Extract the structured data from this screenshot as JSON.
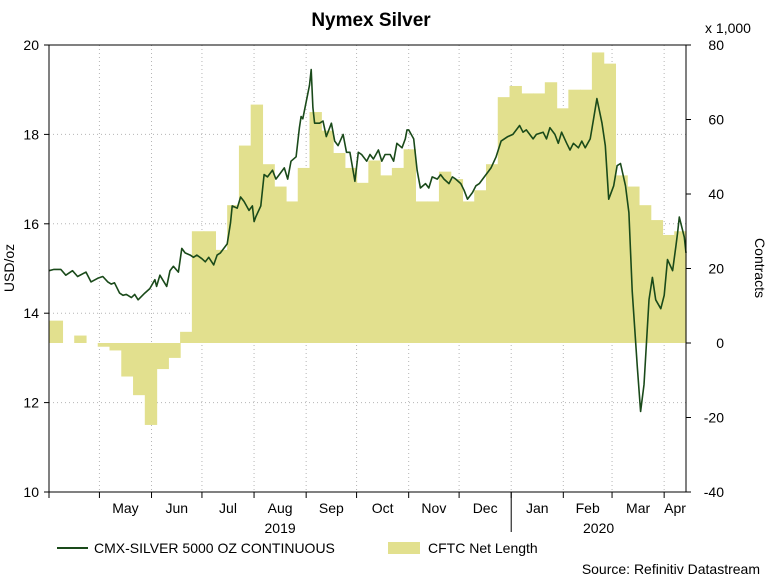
{
  "chart_data": {
    "type": "line",
    "title": "Nymex Silver",
    "left_axis_label": "USD/oz",
    "right_axis_label": "Contracts",
    "right_axis_multiplier": "x 1,000",
    "left_ylim": [
      10,
      20
    ],
    "left_ticks": [
      10,
      12,
      14,
      16,
      18,
      20
    ],
    "right_ylim": [
      -40,
      80
    ],
    "right_ticks": [
      -40,
      -20,
      0,
      20,
      40,
      60,
      80
    ],
    "month_labels": [
      "May",
      "Jun",
      "Jul",
      "Aug",
      "Sep",
      "Oct",
      "Nov",
      "Dec",
      "Jan",
      "Feb",
      "Mar",
      "Apr"
    ],
    "year_labels": [
      "2019",
      "2020"
    ],
    "grid": true,
    "legend_position": "bottom-left",
    "source": "Source: Refinitiv Datastream",
    "x_range": [
      "2019-04-01",
      "2020-04-14"
    ],
    "series": [
      {
        "name": "CMX-SILVER 5000 OZ CONTINUOUS",
        "type": "line",
        "axis": "left",
        "color": "#1a4a1a",
        "points": [
          [
            "2019-04-01",
            14.95
          ],
          [
            "2019-04-04",
            14.98
          ],
          [
            "2019-04-08",
            14.98
          ],
          [
            "2019-04-11",
            14.85
          ],
          [
            "2019-04-15",
            14.95
          ],
          [
            "2019-04-18",
            14.82
          ],
          [
            "2019-04-23",
            14.92
          ],
          [
            "2019-04-26",
            14.7
          ],
          [
            "2019-04-30",
            14.78
          ],
          [
            "2019-05-03",
            14.82
          ],
          [
            "2019-05-06",
            14.7
          ],
          [
            "2019-05-08",
            14.65
          ],
          [
            "2019-05-10",
            14.68
          ],
          [
            "2019-05-13",
            14.45
          ],
          [
            "2019-05-15",
            14.4
          ],
          [
            "2019-05-17",
            14.42
          ],
          [
            "2019-05-20",
            14.35
          ],
          [
            "2019-05-22",
            14.42
          ],
          [
            "2019-05-24",
            14.3
          ],
          [
            "2019-05-28",
            14.45
          ],
          [
            "2019-05-31",
            14.55
          ],
          [
            "2019-06-03",
            14.75
          ],
          [
            "2019-06-04",
            14.6
          ],
          [
            "2019-06-06",
            14.85
          ],
          [
            "2019-06-10",
            14.6
          ],
          [
            "2019-06-12",
            14.95
          ],
          [
            "2019-06-14",
            15.05
          ],
          [
            "2019-06-17",
            14.92
          ],
          [
            "2019-06-19",
            15.45
          ],
          [
            "2019-06-21",
            15.35
          ],
          [
            "2019-06-24",
            15.3
          ],
          [
            "2019-06-26",
            15.25
          ],
          [
            "2019-06-28",
            15.3
          ],
          [
            "2019-07-01",
            15.22
          ],
          [
            "2019-07-03",
            15.15
          ],
          [
            "2019-07-05",
            15.25
          ],
          [
            "2019-07-08",
            15.08
          ],
          [
            "2019-07-10",
            15.3
          ],
          [
            "2019-07-12",
            15.35
          ],
          [
            "2019-07-16",
            15.55
          ],
          [
            "2019-07-18",
            16.02
          ],
          [
            "2019-07-19",
            16.4
          ],
          [
            "2019-07-22",
            16.35
          ],
          [
            "2019-07-24",
            16.6
          ],
          [
            "2019-07-26",
            16.5
          ],
          [
            "2019-07-29",
            16.3
          ],
          [
            "2019-07-31",
            16.4
          ],
          [
            "2019-08-01",
            16.05
          ],
          [
            "2019-08-02",
            16.15
          ],
          [
            "2019-08-05",
            16.4
          ],
          [
            "2019-08-07",
            17.1
          ],
          [
            "2019-08-09",
            17.05
          ],
          [
            "2019-08-12",
            17.2
          ],
          [
            "2019-08-14",
            17.0
          ],
          [
            "2019-08-16",
            17.1
          ],
          [
            "2019-08-19",
            17.25
          ],
          [
            "2019-08-21",
            17.0
          ],
          [
            "2019-08-23",
            17.4
          ],
          [
            "2019-08-26",
            17.5
          ],
          [
            "2019-08-28",
            18.15
          ],
          [
            "2019-08-29",
            18.4
          ],
          [
            "2019-08-30",
            18.35
          ],
          [
            "2019-09-03",
            19.1
          ],
          [
            "2019-09-04",
            19.45
          ],
          [
            "2019-09-05",
            18.6
          ],
          [
            "2019-09-06",
            18.25
          ],
          [
            "2019-09-09",
            18.25
          ],
          [
            "2019-09-11",
            18.3
          ],
          [
            "2019-09-13",
            17.95
          ],
          [
            "2019-09-16",
            18.25
          ],
          [
            "2019-09-18",
            17.85
          ],
          [
            "2019-09-20",
            17.75
          ],
          [
            "2019-09-23",
            18.0
          ],
          [
            "2019-09-25",
            17.6
          ],
          [
            "2019-09-27",
            17.6
          ],
          [
            "2019-09-30",
            16.95
          ],
          [
            "2019-10-02",
            17.6
          ],
          [
            "2019-10-04",
            17.55
          ],
          [
            "2019-10-07",
            17.4
          ],
          [
            "2019-10-09",
            17.55
          ],
          [
            "2019-10-11",
            17.45
          ],
          [
            "2019-10-14",
            17.65
          ],
          [
            "2019-10-16",
            17.4
          ],
          [
            "2019-10-18",
            17.55
          ],
          [
            "2019-10-21",
            17.55
          ],
          [
            "2019-10-23",
            17.4
          ],
          [
            "2019-10-25",
            17.8
          ],
          [
            "2019-10-28",
            17.7
          ],
          [
            "2019-10-30",
            17.9
          ],
          [
            "2019-10-31",
            18.1
          ],
          [
            "2019-11-01",
            18.1
          ],
          [
            "2019-11-04",
            17.9
          ],
          [
            "2019-11-06",
            17.2
          ],
          [
            "2019-11-08",
            16.8
          ],
          [
            "2019-11-11",
            16.9
          ],
          [
            "2019-11-13",
            16.8
          ],
          [
            "2019-11-15",
            17.05
          ],
          [
            "2019-11-18",
            17.0
          ],
          [
            "2019-11-20",
            17.1
          ],
          [
            "2019-11-22",
            17.0
          ],
          [
            "2019-11-25",
            16.9
          ],
          [
            "2019-11-27",
            17.05
          ],
          [
            "2019-11-29",
            17.0
          ],
          [
            "2019-12-02",
            16.9
          ],
          [
            "2019-12-04",
            16.75
          ],
          [
            "2019-12-06",
            16.55
          ],
          [
            "2019-12-09",
            16.7
          ],
          [
            "2019-12-11",
            16.85
          ],
          [
            "2019-12-13",
            16.9
          ],
          [
            "2019-12-16",
            17.05
          ],
          [
            "2019-12-18",
            17.15
          ],
          [
            "2019-12-20",
            17.25
          ],
          [
            "2019-12-23",
            17.5
          ],
          [
            "2019-12-26",
            17.85
          ],
          [
            "2019-12-30",
            17.95
          ],
          [
            "2020-01-02",
            18.0
          ],
          [
            "2020-01-06",
            18.2
          ],
          [
            "2020-01-08",
            18.05
          ],
          [
            "2020-01-10",
            18.1
          ],
          [
            "2020-01-14",
            17.9
          ],
          [
            "2020-01-16",
            18.0
          ],
          [
            "2020-01-20",
            18.05
          ],
          [
            "2020-01-22",
            17.9
          ],
          [
            "2020-01-24",
            18.15
          ],
          [
            "2020-01-27",
            18.0
          ],
          [
            "2020-01-29",
            17.8
          ],
          [
            "2020-01-31",
            18.05
          ],
          [
            "2020-02-03",
            17.8
          ],
          [
            "2020-02-05",
            17.65
          ],
          [
            "2020-02-07",
            17.8
          ],
          [
            "2020-02-10",
            17.7
          ],
          [
            "2020-02-12",
            17.85
          ],
          [
            "2020-02-14",
            17.7
          ],
          [
            "2020-02-17",
            17.9
          ],
          [
            "2020-02-19",
            18.35
          ],
          [
            "2020-02-21",
            18.8
          ],
          [
            "2020-02-24",
            18.25
          ],
          [
            "2020-02-26",
            17.75
          ],
          [
            "2020-02-28",
            16.55
          ],
          [
            "2020-03-02",
            16.85
          ],
          [
            "2020-03-04",
            17.3
          ],
          [
            "2020-03-06",
            17.35
          ],
          [
            "2020-03-09",
            16.85
          ],
          [
            "2020-03-11",
            16.25
          ],
          [
            "2020-03-13",
            14.5
          ],
          [
            "2020-03-16",
            12.8
          ],
          [
            "2020-03-18",
            11.8
          ],
          [
            "2020-03-20",
            12.4
          ],
          [
            "2020-03-23",
            14.3
          ],
          [
            "2020-03-25",
            14.8
          ],
          [
            "2020-03-27",
            14.3
          ],
          [
            "2020-03-30",
            14.1
          ],
          [
            "2020-04-01",
            14.4
          ],
          [
            "2020-04-03",
            15.2
          ],
          [
            "2020-04-06",
            14.95
          ],
          [
            "2020-04-08",
            15.5
          ],
          [
            "2020-04-09",
            15.8
          ],
          [
            "2020-04-10",
            16.15
          ],
          [
            "2020-04-13",
            15.7
          ],
          [
            "2020-04-14",
            15.35
          ]
        ]
      },
      {
        "name": "CFTC Net Length",
        "type": "step-area",
        "axis": "right",
        "color": "#e2e08e",
        "points": [
          [
            "2019-04-01",
            6
          ],
          [
            "2019-04-09",
            0
          ],
          [
            "2019-04-16",
            2
          ],
          [
            "2019-04-23",
            0
          ],
          [
            "2019-04-30",
            -1
          ],
          [
            "2019-05-07",
            -2
          ],
          [
            "2019-05-14",
            -9
          ],
          [
            "2019-05-21",
            -14
          ],
          [
            "2019-05-28",
            -22
          ],
          [
            "2019-06-04",
            -7
          ],
          [
            "2019-06-11",
            -4
          ],
          [
            "2019-06-18",
            3
          ],
          [
            "2019-06-25",
            30
          ],
          [
            "2019-07-02",
            30
          ],
          [
            "2019-07-09",
            25
          ],
          [
            "2019-07-16",
            37
          ],
          [
            "2019-07-23",
            53
          ],
          [
            "2019-07-30",
            64
          ],
          [
            "2019-08-06",
            48
          ],
          [
            "2019-08-13",
            42
          ],
          [
            "2019-08-20",
            38
          ],
          [
            "2019-08-27",
            47
          ],
          [
            "2019-09-03",
            62
          ],
          [
            "2019-09-10",
            57
          ],
          [
            "2019-09-17",
            51
          ],
          [
            "2019-09-24",
            47
          ],
          [
            "2019-10-01",
            43
          ],
          [
            "2019-10-08",
            49
          ],
          [
            "2019-10-15",
            45
          ],
          [
            "2019-10-22",
            47
          ],
          [
            "2019-10-29",
            52
          ],
          [
            "2019-11-05",
            38
          ],
          [
            "2019-11-12",
            38
          ],
          [
            "2019-11-19",
            46
          ],
          [
            "2019-11-26",
            44
          ],
          [
            "2019-12-03",
            38
          ],
          [
            "2019-12-10",
            41
          ],
          [
            "2019-12-17",
            48
          ],
          [
            "2019-12-24",
            66
          ],
          [
            "2019-12-31",
            69
          ],
          [
            "2020-01-07",
            67
          ],
          [
            "2020-01-14",
            67
          ],
          [
            "2020-01-21",
            70
          ],
          [
            "2020-01-28",
            63
          ],
          [
            "2020-02-04",
            68
          ],
          [
            "2020-02-11",
            68
          ],
          [
            "2020-02-18",
            78
          ],
          [
            "2020-02-25",
            75
          ],
          [
            "2020-03-03",
            45
          ],
          [
            "2020-03-10",
            42
          ],
          [
            "2020-03-17",
            37
          ],
          [
            "2020-03-24",
            33
          ],
          [
            "2020-03-31",
            29
          ],
          [
            "2020-04-07",
            30
          ]
        ]
      }
    ]
  }
}
